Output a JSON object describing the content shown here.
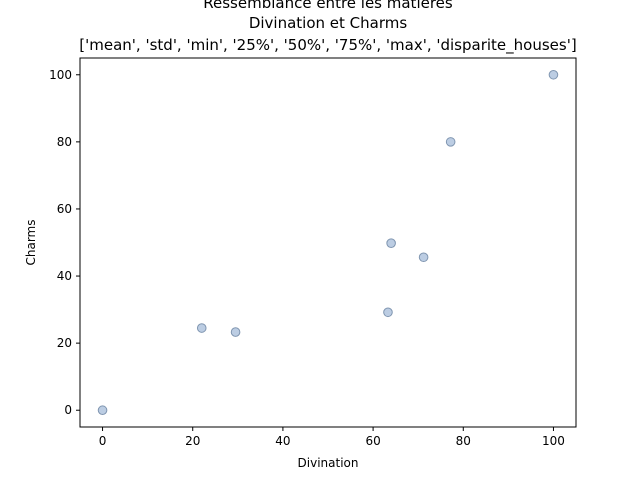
{
  "chart_data": {
    "type": "scatter",
    "title_lines": [
      "Ressemblance entre les matieres",
      "Divination et Charms",
      "['mean', 'std', 'min', '25%', '50%', '75%', 'max', 'disparite_houses']"
    ],
    "xlabel": "Divination",
    "ylabel": "Charms",
    "xlim": [
      -5,
      105
    ],
    "ylim": [
      -5,
      105
    ],
    "xticks": [
      0,
      20,
      40,
      60,
      80,
      100
    ],
    "yticks": [
      0,
      20,
      40,
      60,
      80,
      100
    ],
    "grid": false,
    "marker_fill": "#b0c4de",
    "marker_edge": "#7f95b0",
    "points": [
      {
        "x": 0,
        "y": 0
      },
      {
        "x": 22,
        "y": 24.5
      },
      {
        "x": 29.5,
        "y": 23.3
      },
      {
        "x": 63.3,
        "y": 29.2
      },
      {
        "x": 64,
        "y": 49.8
      },
      {
        "x": 71.2,
        "y": 45.6
      },
      {
        "x": 77.2,
        "y": 80
      },
      {
        "x": 100,
        "y": 100
      }
    ]
  }
}
